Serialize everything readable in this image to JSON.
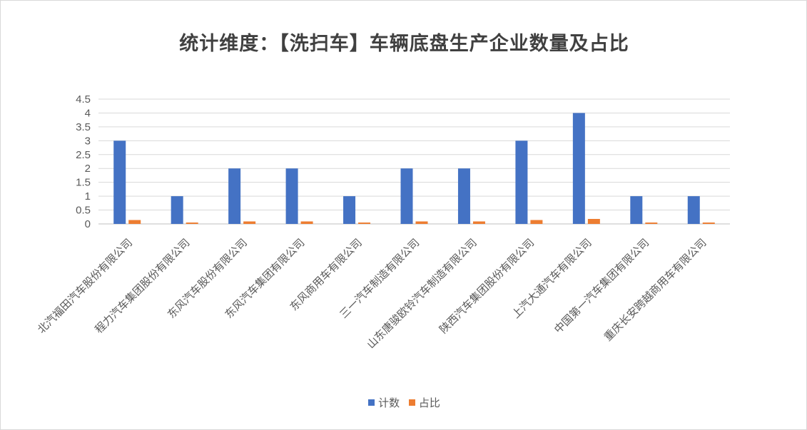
{
  "chart_data": {
    "type": "bar",
    "title": "统计维度：【洗扫车】车辆底盘生产企业数量及占比",
    "categories": [
      "北汽福田汽车股份有限公司",
      "程力汽车集团股份有限公司",
      "东风汽车股份有限公司",
      "东风汽车集团有限公司",
      "东风商用车有限公司",
      "三一汽车制造有限公司",
      "山东唐骏欧铃汽车制造有限公司",
      "陕西汽车集团股份有限公司",
      "上汽大通汽车有限公司",
      "中国第一汽车集团有限公司",
      "重庆长安跨越商用车有限公司"
    ],
    "series": [
      {
        "name": "计数",
        "color": "#4472c4",
        "values": [
          3,
          1,
          2,
          2,
          1,
          2,
          2,
          3,
          4,
          1,
          1
        ]
      },
      {
        "name": "占比",
        "color": "#ed7d31",
        "values": [
          0.14,
          0.05,
          0.09,
          0.09,
          0.05,
          0.09,
          0.09,
          0.14,
          0.18,
          0.05,
          0.05
        ]
      }
    ],
    "yticks": [
      "0",
      "0.5",
      "1",
      "1.5",
      "2",
      "2.5",
      "3",
      "3.5",
      "4",
      "4.5"
    ],
    "ylim": [
      0,
      4.5
    ],
    "grid": true,
    "legend": "bottom"
  }
}
